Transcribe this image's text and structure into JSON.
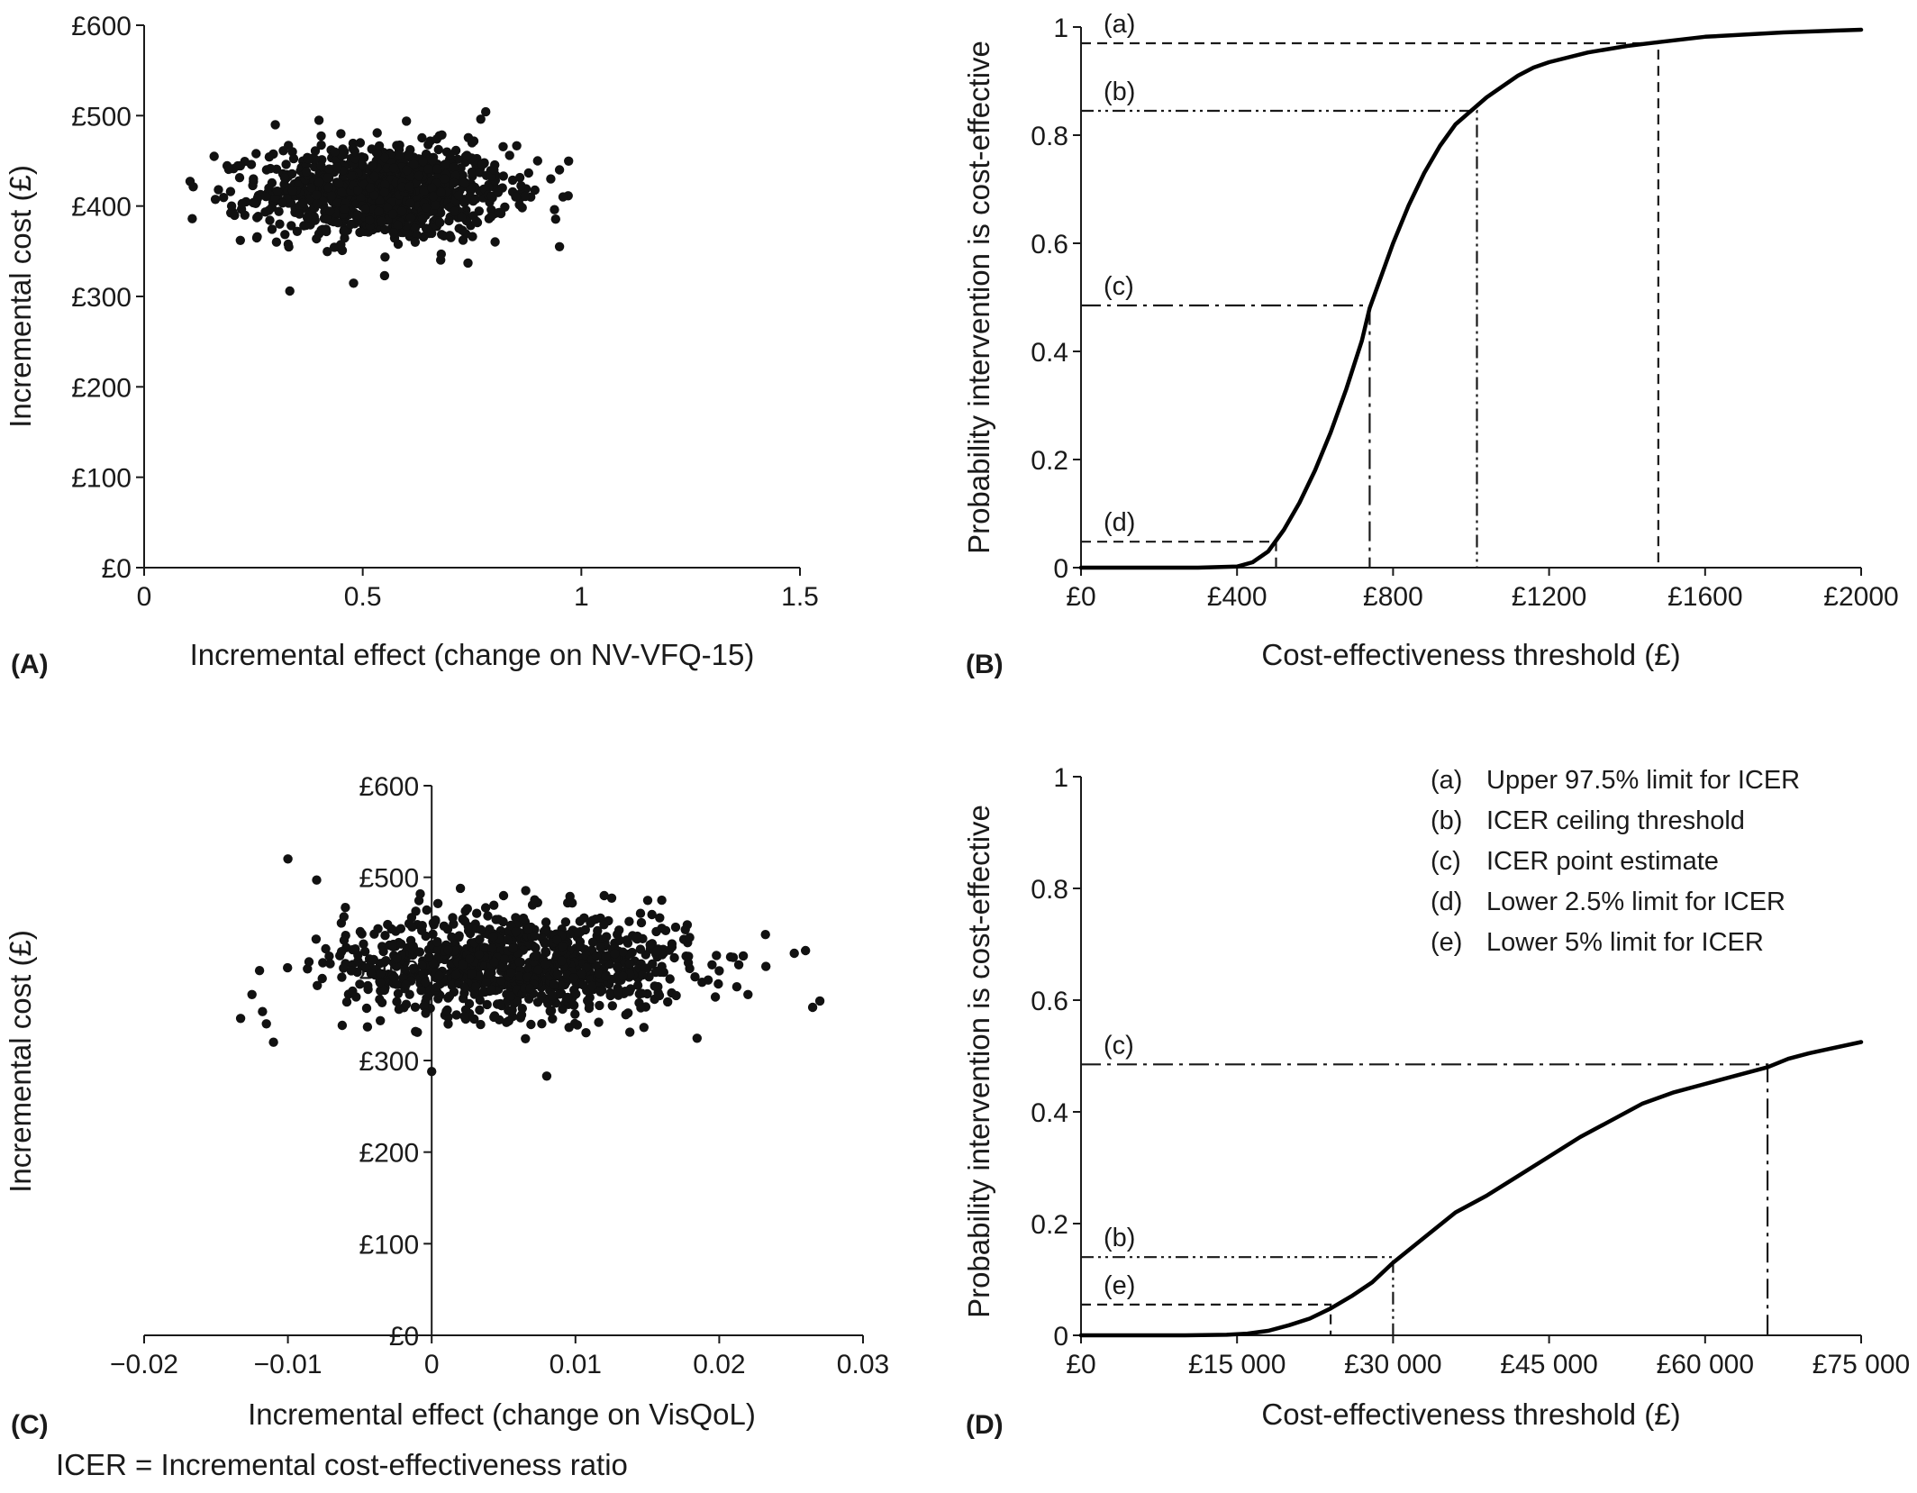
{
  "footnote": "ICER = Incremental cost-effectiveness ratio",
  "chart_data": [
    {
      "id": "A",
      "type": "scatter",
      "panel_label": "(A)",
      "xlabel": "Incremental effect (change on NV-VFQ-15)",
      "ylabel": "Incremental cost (£)",
      "xlim": [
        0,
        1.5
      ],
      "ylim": [
        0,
        600
      ],
      "xticks": [
        "0",
        "0.5",
        "1",
        "1.5"
      ],
      "yticks": [
        "£0",
        "£100",
        "£200",
        "£300",
        "£400",
        "£500",
        "£600"
      ],
      "points_summary": {
        "n": 1000,
        "x_mean": 0.55,
        "x_sd": 0.14,
        "y_mean": 415,
        "y_sd": 26
      },
      "x": [
        0.11,
        0.16,
        0.17,
        0.2,
        0.22,
        0.25,
        0.28,
        0.3,
        0.31,
        0.33,
        0.35,
        0.4,
        0.45,
        0.5,
        0.55,
        0.6,
        0.62,
        0.7,
        0.75,
        0.77,
        0.8,
        0.85,
        0.9,
        0.93,
        0.95,
        0.95,
        0.55
      ],
      "y": [
        386,
        455,
        418,
        400,
        362,
        430,
        440,
        490,
        380,
        467,
        372,
        495,
        480,
        445,
        323,
        494,
        360,
        457,
        470,
        496,
        440,
        410,
        450,
        430,
        440,
        355,
        415
      ]
    },
    {
      "id": "B",
      "type": "line",
      "panel_label": "(B)",
      "xlabel": "Cost-effectiveness threshold (£)",
      "ylabel": "Probability intervention is cost-effective",
      "xlim": [
        0,
        2000
      ],
      "ylim": [
        0,
        1
      ],
      "xticks": [
        "£0",
        "£400",
        "£800",
        "£1200",
        "£1600",
        "£2000"
      ],
      "yticks": [
        "0",
        "0.2",
        "0.4",
        "0.6",
        "0.8",
        "1"
      ],
      "x": [
        0,
        300,
        400,
        440,
        480,
        520,
        560,
        600,
        640,
        680,
        720,
        740,
        760,
        800,
        840,
        880,
        920,
        960,
        1000,
        1040,
        1080,
        1120,
        1160,
        1200,
        1300,
        1400,
        1480,
        1600,
        1800,
        2000
      ],
      "y": [
        0,
        0,
        0.002,
        0.01,
        0.03,
        0.07,
        0.12,
        0.18,
        0.25,
        0.33,
        0.42,
        0.48,
        0.52,
        0.6,
        0.67,
        0.73,
        0.78,
        0.82,
        0.845,
        0.87,
        0.89,
        0.91,
        0.925,
        0.935,
        0.953,
        0.965,
        0.972,
        0.982,
        0.99,
        0.995
      ],
      "reference_lines": [
        {
          "label": "(a)",
          "threshold": 1480,
          "probability": 0.97,
          "style": "dashed"
        },
        {
          "label": "(b)",
          "threshold": 1015,
          "probability": 0.845,
          "style": "dashdotdot"
        },
        {
          "label": "(c)",
          "threshold": 740,
          "probability": 0.485,
          "style": "dashdot"
        },
        {
          "label": "(d)",
          "threshold": 500,
          "probability": 0.048,
          "style": "dashed"
        }
      ]
    },
    {
      "id": "C",
      "type": "scatter",
      "panel_label": "(C)",
      "xlabel": "Incremental effect (change on VisQoL)",
      "ylabel": "Incremental cost (£)",
      "xlim": [
        -0.02,
        0.03
      ],
      "ylim": [
        0,
        600
      ],
      "xticks": [
        "−0.02",
        "−0.01",
        "0",
        "0.01",
        "0.02",
        "0.03"
      ],
      "yticks": [
        "£0",
        "£100",
        "£200",
        "£300",
        "£400",
        "£500",
        "£600"
      ],
      "points_summary": {
        "n": 1000,
        "x_mean": 0.006,
        "x_sd": 0.006,
        "y_mean": 405,
        "y_sd": 28
      },
      "x": [
        -0.0125,
        -0.0115,
        -0.011,
        -0.01,
        -0.008,
        -0.006,
        -0.004,
        0,
        0.002,
        0.005,
        0.008,
        0.012,
        0.016,
        0.02,
        0.022,
        0.026,
        0.0265,
        0.027
      ],
      "y": [
        372,
        340,
        320,
        520,
        497,
        467,
        438,
        288,
        488,
        480,
        283,
        480,
        475,
        398,
        372,
        420,
        358,
        365
      ]
    },
    {
      "id": "D",
      "type": "line",
      "panel_label": "(D)",
      "xlabel": "Cost-effectiveness threshold (£)",
      "ylabel": "Probability intervention is cost-effective",
      "xlim": [
        0,
        75000
      ],
      "ylim": [
        0,
        1
      ],
      "xticks": [
        "£0",
        "£15 000",
        "£30 000",
        "£45 000",
        "£60 000",
        "£75 000"
      ],
      "yticks": [
        "0",
        "0.2",
        "0.4",
        "0.6",
        "0.8",
        "1"
      ],
      "x": [
        0,
        10000,
        14000,
        16000,
        18000,
        20000,
        22000,
        24000,
        26000,
        28000,
        30000,
        33000,
        36000,
        39000,
        42000,
        45000,
        48000,
        51000,
        54000,
        57000,
        60000,
        63000,
        66000,
        68000,
        70000,
        72000,
        75000
      ],
      "y": [
        0,
        0,
        0.001,
        0.003,
        0.008,
        0.018,
        0.03,
        0.048,
        0.07,
        0.095,
        0.13,
        0.175,
        0.22,
        0.25,
        0.285,
        0.32,
        0.355,
        0.385,
        0.415,
        0.435,
        0.45,
        0.465,
        0.48,
        0.495,
        0.505,
        0.513,
        0.525
      ],
      "reference_lines": [
        {
          "label": "(c)",
          "threshold": 66000,
          "probability": 0.485,
          "style": "dashdot"
        },
        {
          "label": "(b)",
          "threshold": 30000,
          "probability": 0.14,
          "style": "dashdotdot"
        },
        {
          "label": "(e)",
          "threshold": 24000,
          "probability": 0.055,
          "style": "dashed"
        }
      ],
      "legend": [
        {
          "key": "(a)",
          "text": "Upper 97.5% limit for ICER"
        },
        {
          "key": "(b)",
          "text": "ICER ceiling threshold"
        },
        {
          "key": "(c)",
          "text": "ICER point estimate"
        },
        {
          "key": "(d)",
          "text": "Lower 2.5% limit for ICER"
        },
        {
          "key": "(e)",
          "text": "Lower 5% limit for ICER"
        }
      ]
    }
  ]
}
